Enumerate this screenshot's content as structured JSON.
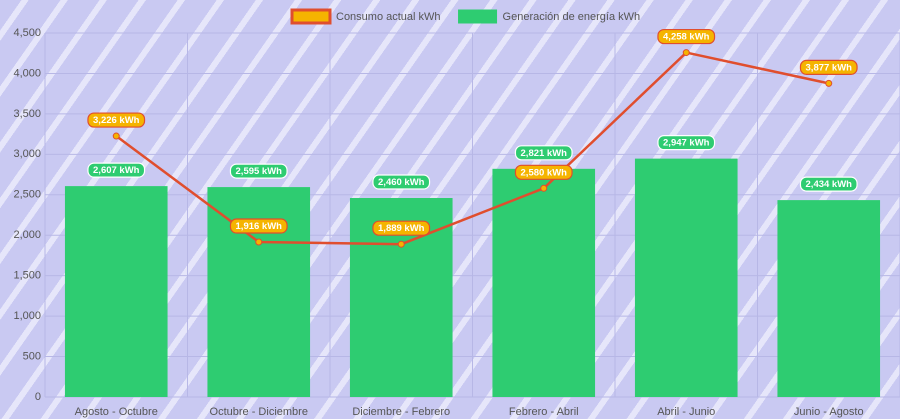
{
  "chart_data": {
    "type": "bar",
    "categories": [
      "Agosto - Octubre",
      "Octubre - Diciembre",
      "Diciembre - Febrero",
      "Febrero - Abril",
      "Abril - Junio",
      "Junio - Agosto"
    ],
    "series": [
      {
        "name": "Consumo actual kWh",
        "type": "line",
        "color": "#e04e2e",
        "point_color": "#f5b400",
        "values": [
          3226,
          1916,
          1889,
          2580,
          4258,
          3877
        ],
        "value_labels": [
          "3,226 kWh",
          "1,916 kWh",
          "1,889 kWh",
          "2,580 kWh",
          "4,258 kWh",
          "3,877 kWh"
        ]
      },
      {
        "name": "Generación de energía kWh",
        "type": "bar",
        "color": "#2ecc71",
        "values": [
          2607,
          2595,
          2460,
          2821,
          2947,
          2434
        ],
        "value_labels": [
          "2,607 kWh",
          "2,595 kWh",
          "2,460 kWh",
          "2,821 kWh",
          "2,947 kWh",
          "2,434 kWh"
        ]
      }
    ],
    "ylim": [
      0,
      4500
    ],
    "yticks": [
      0,
      500,
      {
        "value": 1000,
        "label": "1,000"
      },
      {
        "value": 1500,
        "label": "1,500"
      },
      {
        "value": 2000,
        "label": "2,000"
      },
      {
        "value": 2500,
        "label": "2,500"
      },
      {
        "value": 3000,
        "label": "3,000"
      },
      {
        "value": 3500,
        "label": "3,500"
      },
      {
        "value": 4000,
        "label": "4,000"
      },
      {
        "value": 4500,
        "label": "4,500"
      }
    ],
    "grid": true,
    "legend": "top"
  }
}
